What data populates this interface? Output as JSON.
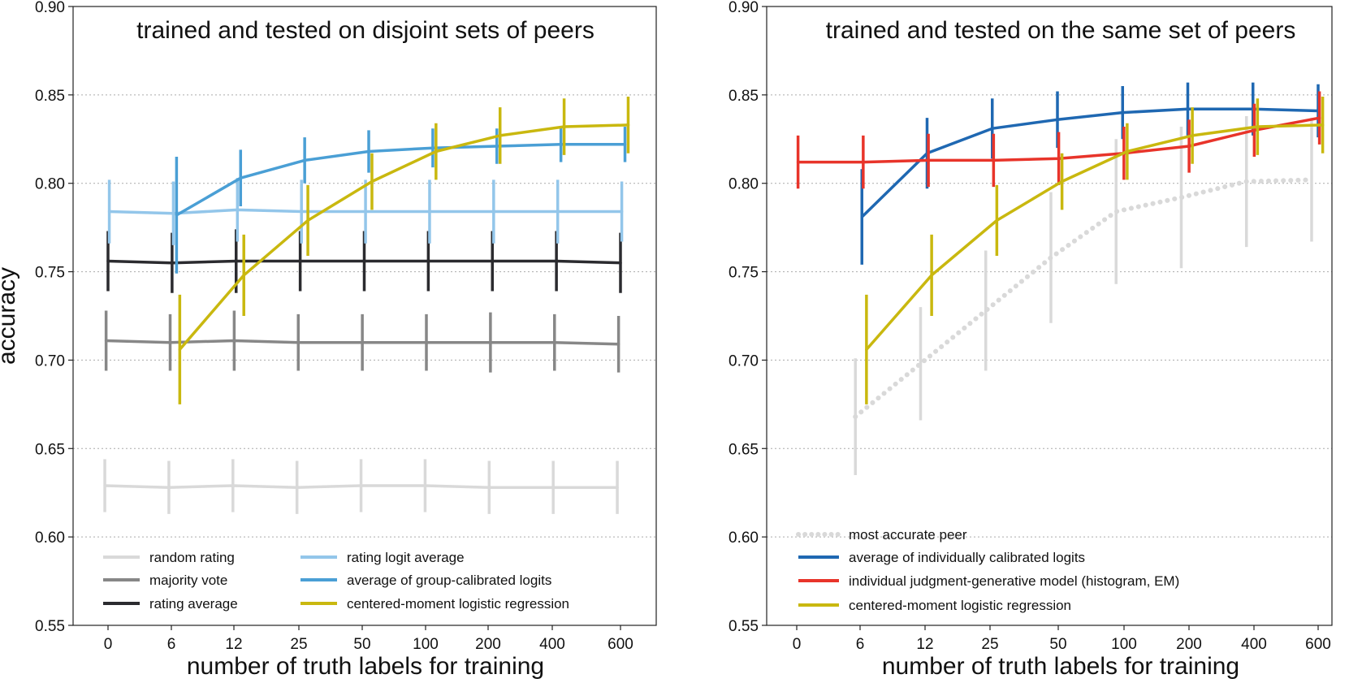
{
  "chart_data": [
    {
      "type": "line",
      "title": "trained and tested on disjoint sets of peers",
      "xlabel": "number of truth labels for training",
      "ylabel": "accuracy",
      "categories": [
        "0",
        "6",
        "12",
        "25",
        "50",
        "100",
        "200",
        "400",
        "600"
      ],
      "ylim": [
        0.55,
        0.9
      ],
      "yticks": [
        "0.55",
        "0.60",
        "0.65",
        "0.70",
        "0.75",
        "0.80",
        "0.85",
        "0.90"
      ],
      "grid": "horizontal dotted",
      "legend_position": "bottom, two columns",
      "series": [
        {
          "name": "random rating",
          "color": "#d9d9d9",
          "style": "solid",
          "x": [
            0,
            1,
            2,
            3,
            4,
            5,
            6,
            7,
            8
          ],
          "xoff": -0.05,
          "values": [
            0.629,
            0.628,
            0.629,
            0.628,
            0.629,
            0.629,
            0.628,
            0.628,
            0.628
          ],
          "err": [
            0.015,
            0.015,
            0.015,
            0.015,
            0.015,
            0.015,
            0.015,
            0.015,
            0.015
          ]
        },
        {
          "name": "majority vote",
          "color": "#878787",
          "style": "solid",
          "x": [
            0,
            1,
            2,
            3,
            4,
            5,
            6,
            7,
            8
          ],
          "xoff": -0.03,
          "values": [
            0.711,
            0.71,
            0.711,
            0.71,
            0.71,
            0.71,
            0.71,
            0.71,
            0.709
          ],
          "err": [
            0.017,
            0.016,
            0.017,
            0.016,
            0.016,
            0.016,
            0.017,
            0.016,
            0.016
          ]
        },
        {
          "name": "rating average",
          "color": "#2b2b2f",
          "style": "solid",
          "x": [
            0,
            1,
            2,
            3,
            4,
            5,
            6,
            7,
            8
          ],
          "xoff": 0.0,
          "values": [
            0.756,
            0.755,
            0.756,
            0.756,
            0.756,
            0.756,
            0.756,
            0.756,
            0.755
          ],
          "err": [
            0.017,
            0.017,
            0.018,
            0.017,
            0.017,
            0.017,
            0.017,
            0.017,
            0.017
          ]
        },
        {
          "name": "rating logit average",
          "color": "#93c6ea",
          "style": "solid",
          "x": [
            0,
            1,
            2,
            3,
            4,
            5,
            6,
            7,
            8
          ],
          "xoff": 0.02,
          "values": [
            0.784,
            0.783,
            0.785,
            0.784,
            0.784,
            0.784,
            0.784,
            0.784,
            0.784
          ],
          "err": [
            0.018,
            0.018,
            0.018,
            0.018,
            0.018,
            0.018,
            0.018,
            0.018,
            0.017
          ]
        },
        {
          "name": "average of group-calibrated logits",
          "color": "#4a9fd5",
          "style": "solid",
          "x": [
            1,
            2,
            3,
            4,
            5,
            6,
            7,
            8
          ],
          "xoff": 0.07,
          "values": [
            0.782,
            0.803,
            0.813,
            0.818,
            0.82,
            0.821,
            0.822,
            0.822
          ],
          "err": [
            0.033,
            0.016,
            0.013,
            0.012,
            0.011,
            0.01,
            0.01,
            0.01
          ]
        },
        {
          "name": "centered-moment logistic regression",
          "color": "#c9b80f",
          "style": "solid",
          "x": [
            1,
            2,
            3,
            4,
            5,
            6,
            7,
            8
          ],
          "xoff": 0.12,
          "values": [
            0.706,
            0.748,
            0.779,
            0.801,
            0.818,
            0.827,
            0.832,
            0.833
          ],
          "err": [
            0.031,
            0.023,
            0.02,
            0.016,
            0.016,
            0.016,
            0.016,
            0.016
          ]
        }
      ],
      "legend_rows": [
        [
          "random rating",
          "rating logit average"
        ],
        [
          "majority vote",
          "average of group-calibrated logits"
        ],
        [
          "rating average",
          "centered-moment logistic regression"
        ]
      ]
    },
    {
      "type": "line",
      "title": "trained and tested on the same set of peers",
      "xlabel": "number of truth labels for training",
      "ylabel": "",
      "categories": [
        "0",
        "6",
        "12",
        "25",
        "50",
        "100",
        "200",
        "400",
        "600"
      ],
      "ylim": [
        0.55,
        0.9
      ],
      "yticks": [
        "0.55",
        "0.60",
        "0.65",
        "0.70",
        "0.75",
        "0.80",
        "0.85",
        "0.90"
      ],
      "grid": "horizontal dotted",
      "legend_position": "bottom-left",
      "series": [
        {
          "name": "most accurate peer",
          "color": "#d9d9d9",
          "style": "dotted",
          "x": [
            1,
            2,
            3,
            4,
            5,
            6,
            7,
            8
          ],
          "xoff": -0.1,
          "values": [
            0.668,
            0.698,
            0.728,
            0.758,
            0.784,
            0.792,
            0.801,
            0.802
          ],
          "err": [
            0.033,
            0.032,
            0.034,
            0.037,
            0.041,
            0.04,
            0.037,
            0.035
          ]
        },
        {
          "name": "average of individually calibrated logits",
          "color": "#1f68b2",
          "style": "solid",
          "x": [
            1,
            2,
            3,
            4,
            5,
            6,
            7,
            8
          ],
          "xoff": 0.0,
          "values": [
            0.781,
            0.817,
            0.831,
            0.836,
            0.84,
            0.842,
            0.842,
            0.841
          ],
          "err": [
            0.027,
            0.02,
            0.017,
            0.016,
            0.015,
            0.015,
            0.015,
            0.015
          ]
        },
        {
          "name": "individual judgment-generative model (histogram, EM)",
          "color": "#e8342a",
          "style": "solid",
          "x": [
            0,
            1,
            2,
            3,
            4,
            5,
            6,
            7,
            8
          ],
          "xoff": 0.02,
          "values": [
            0.812,
            0.812,
            0.813,
            0.813,
            0.814,
            0.817,
            0.821,
            0.83,
            0.837
          ],
          "err": [
            0.015,
            0.015,
            0.015,
            0.015,
            0.015,
            0.015,
            0.015,
            0.015,
            0.015
          ]
        },
        {
          "name": "centered-moment logistic regression",
          "color": "#c9b80f",
          "style": "solid",
          "x": [
            1,
            2,
            3,
            4,
            5,
            6,
            7,
            8
          ],
          "xoff": 0.07,
          "values": [
            0.706,
            0.748,
            0.779,
            0.801,
            0.818,
            0.827,
            0.832,
            0.833
          ],
          "err": [
            0.031,
            0.023,
            0.02,
            0.016,
            0.016,
            0.016,
            0.016,
            0.016
          ]
        }
      ],
      "legend_rows": [
        [
          "most accurate peer"
        ],
        [
          "average of individually calibrated logits"
        ],
        [
          "individual judgment-generative model (histogram, EM)"
        ],
        [
          "centered-moment logistic regression"
        ]
      ]
    }
  ]
}
